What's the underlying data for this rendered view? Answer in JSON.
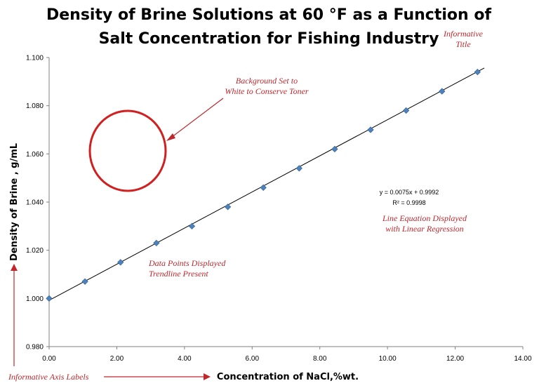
{
  "chart_data": {
    "type": "scatter",
    "title_lines": [
      "Density of Brine Solutions at 60 °F as a Function of",
      "Salt Concentration for Fishing Industry"
    ],
    "xlabel": "Concentration of NaCl,%wt.",
    "ylabel": "Density of Brine , g/mL",
    "xlim": [
      0,
      14
    ],
    "ylim": [
      0.98,
      1.1
    ],
    "x_ticks": [
      "0.00",
      "2.00",
      "4.00",
      "6.00",
      "8.00",
      "10.00",
      "12.00",
      "14.00"
    ],
    "y_ticks": [
      "0.980",
      "1.000",
      "1.020",
      "1.040",
      "1.060",
      "1.080",
      "1.100"
    ],
    "series": [
      {
        "x": [
          0.0,
          1.06,
          2.11,
          3.17,
          4.22,
          5.28,
          6.33,
          7.39,
          8.44,
          9.5,
          10.55,
          11.61,
          12.66
        ],
        "y": [
          1.0,
          1.007,
          1.015,
          1.023,
          1.03,
          1.038,
          1.046,
          1.054,
          1.062,
          1.07,
          1.078,
          1.086,
          1.094
        ],
        "marker": "diamond",
        "color": "#4f81bd"
      }
    ],
    "trendline": {
      "slope": 0.0075,
      "intercept": 0.9992,
      "color": "#000000",
      "equation": "y = 0.0075x + 0.9992",
      "r_squared": "R² = 0.9998"
    },
    "annotations": {
      "title_note": [
        "Informative",
        "Title"
      ],
      "background_note": [
        "Background Set to",
        "White to Conserve Toner"
      ],
      "points_note": [
        "Data Points Displayed",
        "Trendline Present"
      ],
      "equation_note": [
        "Line Equation Displayed",
        "with Linear Regression"
      ],
      "axis_note": "Informative Axis Labels",
      "color": "#c0272d"
    },
    "grid": false
  }
}
